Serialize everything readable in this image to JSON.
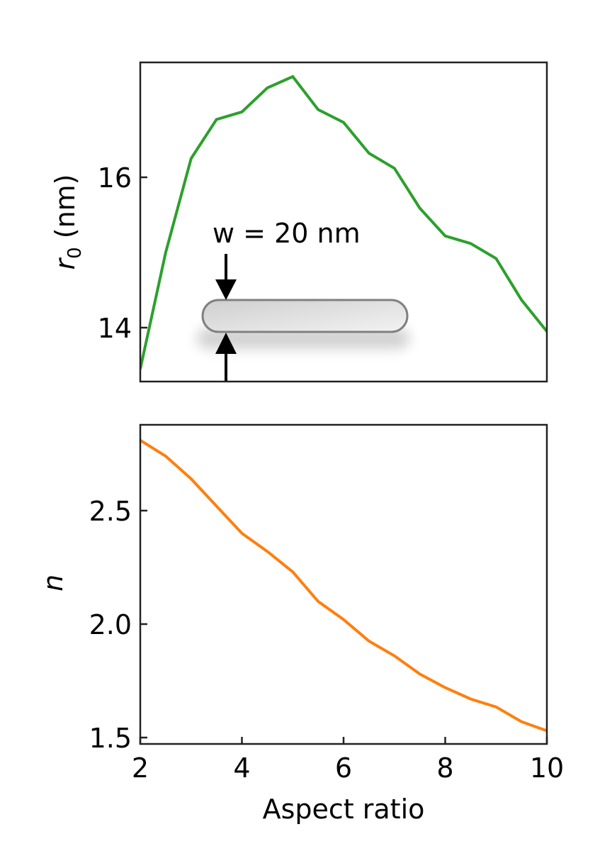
{
  "chart_data": [
    {
      "type": "line",
      "panel": "top",
      "title": "",
      "xlabel": "",
      "ylabel": "r0 (nm)",
      "ylabel_main": "r",
      "ylabel_sub": "0",
      "ylabel_rest": " (nm)",
      "xlim": [
        2,
        10
      ],
      "ylim": [
        13.28,
        17.53
      ],
      "yticks": [
        14,
        16
      ],
      "ytick_labels": [
        "14",
        "16"
      ],
      "grid": false,
      "legend": null,
      "series": [
        {
          "name": "r0",
          "color": "#2ca02c",
          "x": [
            2.0,
            2.5,
            3.0,
            3.5,
            4.0,
            4.5,
            5.0,
            5.5,
            6.0,
            6.5,
            7.0,
            7.5,
            8.0,
            8.5,
            9.0,
            9.5,
            10.0
          ],
          "values": [
            13.45,
            15.0,
            16.25,
            16.77,
            16.87,
            17.19,
            17.34,
            16.9,
            16.73,
            16.32,
            16.12,
            15.59,
            15.22,
            15.12,
            14.92,
            14.37,
            13.95
          ]
        }
      ],
      "annotations": [
        {
          "type": "text",
          "text": "w = 20 nm"
        },
        {
          "type": "inset-illustration",
          "description": "nanorod with width arrows"
        }
      ]
    },
    {
      "type": "line",
      "panel": "bottom",
      "title": "",
      "xlabel": "Aspect ratio",
      "ylabel": "n",
      "xlim": [
        2,
        10
      ],
      "ylim": [
        1.47,
        2.88
      ],
      "xticks": [
        2,
        4,
        6,
        8,
        10
      ],
      "xtick_labels": [
        "2",
        "4",
        "6",
        "8",
        "10"
      ],
      "yticks": [
        1.5,
        2.0,
        2.5
      ],
      "ytick_labels": [
        "1.5",
        "2.0",
        "2.5"
      ],
      "grid": false,
      "legend": null,
      "series": [
        {
          "name": "n",
          "color": "#ff7f0e",
          "x": [
            2.0,
            2.5,
            3.0,
            3.5,
            4.0,
            4.5,
            5.0,
            5.5,
            6.0,
            6.5,
            7.0,
            7.5,
            8.0,
            8.5,
            9.0,
            9.5,
            10.0
          ],
          "values": [
            2.81,
            2.74,
            2.64,
            2.52,
            2.4,
            2.32,
            2.23,
            2.1,
            2.02,
            1.925,
            1.86,
            1.78,
            1.72,
            1.67,
            1.635,
            1.57,
            1.53
          ]
        }
      ]
    }
  ],
  "annotation": {
    "width_label": "w = 20 nm"
  },
  "colors": {
    "green": "#2ca02c",
    "orange": "#ff7f0e",
    "axis": "#000000",
    "rod_stroke": "#808080"
  }
}
